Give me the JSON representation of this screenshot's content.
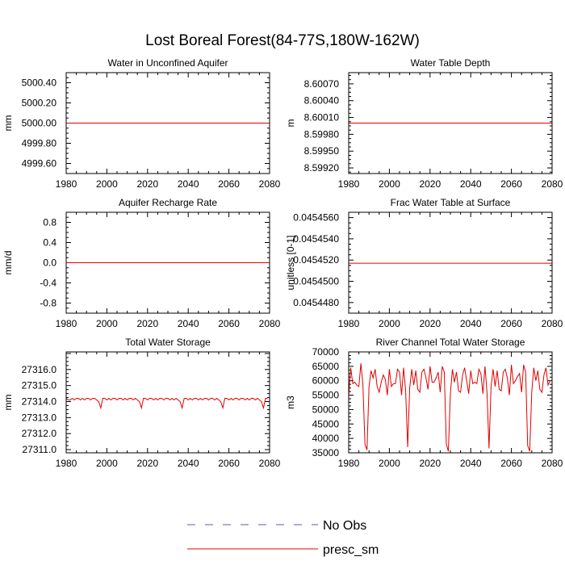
{
  "title": "Lost Boreal Forest(84-77S,180W-162W)",
  "legend": {
    "entries": [
      {
        "label": "No Obs",
        "color": "#5a5ab4",
        "style": "dashed"
      },
      {
        "label": "presc_sm",
        "color": "#e00000",
        "style": "solid"
      }
    ]
  },
  "chart_data": [
    {
      "type": "line",
      "title": "Water in Unconfined Aquifer",
      "ylabel": "mm",
      "xlim": [
        1980,
        2080
      ],
      "ylim": [
        4999.5,
        5000.5
      ],
      "x_ticks": [
        "1980",
        "2000",
        "2020",
        "2040",
        "2060",
        "2080"
      ],
      "y_ticks": [
        {
          "value": 5000.4,
          "label": "5000.40"
        },
        {
          "value": 5000.2,
          "label": "5000.20"
        },
        {
          "value": 5000.0,
          "label": "5000.00"
        },
        {
          "value": 4999.8,
          "label": "4999.80"
        },
        {
          "value": 4999.6,
          "label": "4999.60"
        }
      ],
      "series": [
        {
          "name": "presc_sm",
          "color": "#e00000",
          "x": [
            1980,
            2080
          ],
          "values": [
            5000.0,
            5000.0
          ]
        }
      ]
    },
    {
      "type": "line",
      "title": "Water Table Depth",
      "ylabel": "m",
      "xlim": [
        1980,
        2080
      ],
      "ylim": [
        8.5991,
        8.6009
      ],
      "x_ticks": [
        "1980",
        "2000",
        "2020",
        "2040",
        "2060",
        "2080"
      ],
      "y_ticks": [
        {
          "value": 8.6007,
          "label": "8.60070"
        },
        {
          "value": 8.6004,
          "label": "8.60040"
        },
        {
          "value": 8.6001,
          "label": "8.60010"
        },
        {
          "value": 8.5998,
          "label": "8.59980"
        },
        {
          "value": 8.5995,
          "label": "8.59950"
        },
        {
          "value": 8.5992,
          "label": "8.59920"
        }
      ],
      "series": [
        {
          "name": "presc_sm",
          "color": "#e00000",
          "x": [
            1980,
            2080
          ],
          "values": [
            8.6,
            8.6
          ]
        }
      ]
    },
    {
      "type": "line",
      "title": "Aquifer Recharge Rate",
      "ylabel": "mm/d",
      "xlim": [
        1980,
        2080
      ],
      "ylim": [
        -1.0,
        1.0
      ],
      "x_ticks": [
        "1980",
        "2000",
        "2020",
        "2040",
        "2060",
        "2080"
      ],
      "y_ticks": [
        {
          "value": 0.8,
          "label": "0.8"
        },
        {
          "value": 0.4,
          "label": "0.4"
        },
        {
          "value": 0.0,
          "label": "0.0"
        },
        {
          "value": -0.4,
          "label": "-0.4"
        },
        {
          "value": -0.8,
          "label": "-0.8"
        }
      ],
      "series": [
        {
          "name": "presc_sm",
          "color": "#e00000",
          "x": [
            1980,
            2080
          ],
          "values": [
            0.0,
            0.0
          ]
        }
      ]
    },
    {
      "type": "line",
      "title": "Frac Water Table at Surface",
      "ylabel": "unitless [0-1]",
      "xlim": [
        1980,
        2080
      ],
      "ylim": [
        0.045447,
        0.0454565
      ],
      "x_ticks": [
        "1980",
        "2000",
        "2020",
        "2040",
        "2060",
        "2080"
      ],
      "y_ticks": [
        {
          "value": 0.045456,
          "label": "0.0454560"
        },
        {
          "value": 0.045454,
          "label": "0.0454540"
        },
        {
          "value": 0.045452,
          "label": "0.0454520"
        },
        {
          "value": 0.04545,
          "label": "0.0454500"
        },
        {
          "value": 0.045448,
          "label": "0.0454480"
        }
      ],
      "series": [
        {
          "name": "presc_sm",
          "color": "#e00000",
          "x": [
            1980,
            2080
          ],
          "values": [
            0.0454517,
            0.0454517
          ]
        }
      ]
    },
    {
      "type": "line",
      "title": "Total Water Storage",
      "ylabel": "mm",
      "xlim": [
        1980,
        2080
      ],
      "ylim": [
        27310.8,
        27317.1
      ],
      "x_ticks": [
        "1980",
        "2000",
        "2020",
        "2040",
        "2060",
        "2080"
      ],
      "y_ticks": [
        {
          "value": 27316.0,
          "label": "27316.0"
        },
        {
          "value": 27315.0,
          "label": "27315.0"
        },
        {
          "value": 27314.0,
          "label": "27314.0"
        },
        {
          "value": 27313.0,
          "label": "27313.0"
        },
        {
          "value": 27312.0,
          "label": "27312.0"
        },
        {
          "value": 27311.0,
          "label": "27311.0"
        }
      ],
      "series": [
        {
          "name": "presc_sm",
          "color": "#e00000",
          "x": [
            1980,
            1981,
            1982,
            1983,
            1984,
            1985,
            1986,
            1987,
            1988,
            1989,
            1990,
            1991,
            1992,
            1993,
            1994,
            1995,
            1996,
            1997,
            1998,
            1999,
            2000,
            2001,
            2002,
            2003,
            2004,
            2005,
            2006,
            2007,
            2008,
            2009,
            2010,
            2011,
            2012,
            2013,
            2014,
            2015,
            2016,
            2017,
            2018,
            2019,
            2020,
            2021,
            2022,
            2023,
            2024,
            2025,
            2026,
            2027,
            2028,
            2029,
            2030,
            2031,
            2032,
            2033,
            2034,
            2035,
            2036,
            2037,
            2038,
            2039,
            2040,
            2041,
            2042,
            2043,
            2044,
            2045,
            2046,
            2047,
            2048,
            2049,
            2050,
            2051,
            2052,
            2053,
            2054,
            2055,
            2056,
            2057,
            2058,
            2059,
            2060,
            2061,
            2062,
            2063,
            2064,
            2065,
            2066,
            2067,
            2068,
            2069,
            2070,
            2071,
            2072,
            2073,
            2074,
            2075,
            2076,
            2077,
            2078,
            2079
          ],
          "values": [
            27314.2,
            27314.1,
            27314.1,
            27314.2,
            27314.1,
            27314.2,
            27314.2,
            27314.1,
            27314.2,
            27314.1,
            27314.2,
            27314.2,
            27314.1,
            27314.2,
            27314.2,
            27314.1,
            27314.0,
            27313.6,
            27314.2,
            27314.2,
            27314.1,
            27314.2,
            27314.1,
            27314.2,
            27314.2,
            27314.1,
            27314.2,
            27314.2,
            27314.1,
            27314.2,
            27314.1,
            27314.2,
            27314.2,
            27314.1,
            27314.2,
            27314.1,
            27314.0,
            27313.6,
            27314.2,
            27314.2,
            27314.1,
            27314.2,
            27314.2,
            27314.1,
            27314.2,
            27314.1,
            27314.2,
            27314.2,
            27314.1,
            27314.2,
            27314.2,
            27314.1,
            27314.2,
            27314.1,
            27314.2,
            27314.1,
            27314.0,
            27313.6,
            27314.2,
            27314.2,
            27314.1,
            27314.2,
            27314.1,
            27314.2,
            27314.2,
            27314.1,
            27314.2,
            27314.1,
            27314.2,
            27314.2,
            27314.1,
            27314.2,
            27314.2,
            27314.1,
            27314.2,
            27314.1,
            27314.0,
            27313.6,
            27314.2,
            27314.2,
            27314.1,
            27314.2,
            27314.1,
            27314.2,
            27314.2,
            27314.1,
            27314.2,
            27314.2,
            27314.1,
            27314.2,
            27314.1,
            27314.2,
            27314.2,
            27314.1,
            27314.2,
            27314.1,
            27314.0,
            27313.6,
            27314.2,
            27314.2
          ]
        }
      ]
    },
    {
      "type": "line",
      "title": "River Channel Total Water Storage",
      "ylabel": "m3",
      "xlim": [
        1980,
        2080
      ],
      "ylim": [
        35000,
        70000
      ],
      "x_ticks": [
        "1980",
        "2000",
        "2020",
        "2040",
        "2060",
        "2080"
      ],
      "y_ticks": [
        {
          "value": 70000,
          "label": "70000"
        },
        {
          "value": 65000,
          "label": "65000"
        },
        {
          "value": 60000,
          "label": "60000"
        },
        {
          "value": 55000,
          "label": "55000"
        },
        {
          "value": 50000,
          "label": "50000"
        },
        {
          "value": 45000,
          "label": "45000"
        },
        {
          "value": 40000,
          "label": "40000"
        },
        {
          "value": 35000,
          "label": "35000"
        }
      ],
      "series": [
        {
          "name": "presc_sm",
          "color": "#e00000",
          "x": [
            1980,
            1981,
            1982,
            1983,
            1984,
            1985,
            1986,
            1987,
            1988,
            1989,
            1990,
            1991,
            1992,
            1993,
            1994,
            1995,
            1996,
            1997,
            1998,
            1999,
            2000,
            2001,
            2002,
            2003,
            2004,
            2005,
            2006,
            2007,
            2008,
            2009,
            2010,
            2011,
            2012,
            2013,
            2014,
            2015,
            2016,
            2017,
            2018,
            2019,
            2020,
            2021,
            2022,
            2023,
            2024,
            2025,
            2026,
            2027,
            2028,
            2029,
            2030,
            2031,
            2032,
            2033,
            2034,
            2035,
            2036,
            2037,
            2038,
            2039,
            2040,
            2041,
            2042,
            2043,
            2044,
            2045,
            2046,
            2047,
            2048,
            2049,
            2050,
            2051,
            2052,
            2053,
            2054,
            2055,
            2056,
            2057,
            2058,
            2059,
            2060,
            2061,
            2062,
            2063,
            2064,
            2065,
            2066,
            2067,
            2068,
            2069,
            2070,
            2071,
            2072,
            2073,
            2074,
            2075,
            2076,
            2077,
            2078,
            2079
          ],
          "values": [
            55000,
            64500,
            59000,
            59500,
            58500,
            58000,
            66000,
            58500,
            38000,
            36000,
            58000,
            63500,
            61000,
            64000,
            58000,
            56000,
            59500,
            62000,
            60500,
            55000,
            64000,
            58000,
            59000,
            59000,
            64000,
            63000,
            55000,
            64500,
            56500,
            37000,
            57500,
            64000,
            58500,
            63500,
            57000,
            56000,
            63000,
            64000,
            61000,
            57000,
            65000,
            59500,
            59500,
            61000,
            63000,
            56000,
            65000,
            63000,
            38000,
            35500,
            55500,
            64000,
            59500,
            63000,
            56500,
            56000,
            62000,
            64500,
            60000,
            55500,
            63500,
            59000,
            59500,
            59000,
            64000,
            62500,
            55500,
            65000,
            56000,
            36500,
            58000,
            64000,
            58000,
            63500,
            57000,
            56500,
            63000,
            64000,
            61000,
            55000,
            65500,
            59000,
            60000,
            61500,
            62500,
            56000,
            65500,
            63000,
            37500,
            35500,
            56000,
            64500,
            60000,
            63500,
            57000,
            56000,
            62000,
            64500,
            58500,
            60000
          ]
        }
      ]
    }
  ]
}
